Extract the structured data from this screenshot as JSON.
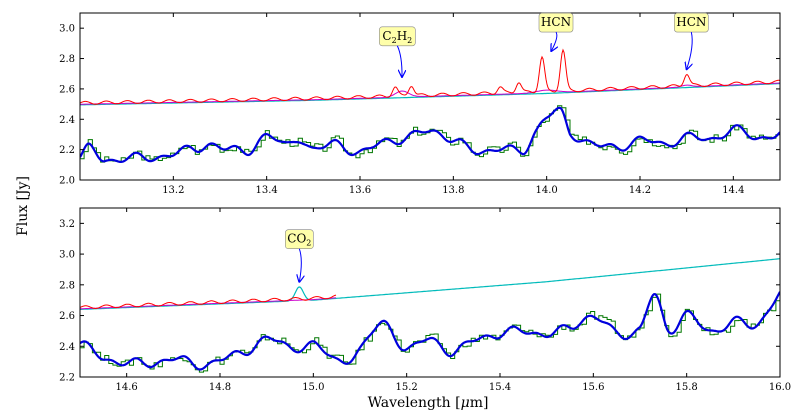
{
  "figure": {
    "ylabel": "Flux [Jy]",
    "xlabel_text": "Wavelength [",
    "xlabel_mu": "μ",
    "xlabel_unit": "m]"
  },
  "colors": {
    "observed": "#007700",
    "model": "#0000dd",
    "molecule": "#ff0000",
    "ch2": "#cc00cc",
    "continuum": "#00bbbb",
    "annotation_bg": "#ffffaa",
    "arrow": "#0000ff"
  },
  "chart_data": [
    {
      "type": "line",
      "xlim": [
        13.0,
        14.5
      ],
      "ylim": [
        2.0,
        3.1
      ],
      "xticks": [
        13.2,
        13.4,
        13.6,
        13.8,
        14.0,
        14.2,
        14.4
      ],
      "yticks": [
        2.0,
        2.2,
        2.4,
        2.6,
        2.8,
        3.0
      ],
      "xtick_labels": [
        "13.2",
        "13.4",
        "13.6",
        "13.8",
        "14.0",
        "14.2",
        "14.4"
      ],
      "ytick_labels": [
        "2.0",
        "2.2",
        "2.4",
        "2.6",
        "2.8",
        "3.0"
      ],
      "grid": false,
      "continuum": {
        "x": [
          13.0,
          13.5,
          14.0,
          14.5
        ],
        "y": [
          2.495,
          2.525,
          2.57,
          2.635
        ]
      },
      "model_points": {
        "x": [
          13.0,
          13.02,
          13.05,
          13.1,
          13.15,
          13.2,
          13.25,
          13.28,
          13.32,
          13.36,
          13.4,
          13.44,
          13.47,
          13.5,
          13.55,
          13.6,
          13.65,
          13.7,
          13.75,
          13.8,
          13.85,
          13.9,
          13.95,
          13.98,
          14.0,
          14.03,
          14.05,
          14.1,
          14.15,
          14.2,
          14.25,
          14.3,
          14.35,
          14.4,
          14.45,
          14.5
        ],
        "y": [
          2.15,
          2.21,
          2.13,
          2.15,
          2.14,
          2.18,
          2.2,
          2.24,
          2.2,
          2.19,
          2.3,
          2.22,
          2.28,
          2.2,
          2.24,
          2.18,
          2.25,
          2.28,
          2.32,
          2.27,
          2.18,
          2.22,
          2.18,
          2.34,
          2.43,
          2.44,
          2.3,
          2.25,
          2.2,
          2.28,
          2.22,
          2.3,
          2.25,
          2.35,
          2.26,
          2.33
        ]
      },
      "molecule_peaks": [
        {
          "x": 13.675,
          "height": 0.06
        },
        {
          "x": 13.71,
          "height": 0.07
        },
        {
          "x": 13.9,
          "height": 0.04
        },
        {
          "x": 13.94,
          "height": 0.07
        },
        {
          "x": 13.99,
          "height": 0.23
        },
        {
          "x": 14.035,
          "height": 0.27
        },
        {
          "x": 14.3,
          "height": 0.08
        }
      ],
      "annotations": [
        {
          "sym": "C",
          "sub1": "2",
          "sym2": "H",
          "sub2": "2",
          "label_x": 13.68,
          "label_y": 2.95,
          "arrow_x": 13.69,
          "arrow_y": 2.68
        },
        {
          "sym": "HCN",
          "label_x": 14.02,
          "label_y": 3.04,
          "arrow_x": 14.01,
          "arrow_y": 2.85
        },
        {
          "sym": "HCN",
          "label_x": 14.31,
          "label_y": 3.04,
          "arrow_x": 14.3,
          "arrow_y": 2.73
        }
      ]
    },
    {
      "type": "line",
      "xlim": [
        14.5,
        16.0
      ],
      "ylim": [
        2.2,
        3.3
      ],
      "xticks": [
        14.6,
        14.8,
        15.0,
        15.2,
        15.4,
        15.6,
        15.8,
        16.0
      ],
      "yticks": [
        2.2,
        2.4,
        2.6,
        2.8,
        3.0,
        3.2
      ],
      "xtick_labels": [
        "14.6",
        "14.8",
        "15.0",
        "15.2",
        "15.4",
        "15.6",
        "15.8",
        "16.0"
      ],
      "ytick_labels": [
        "2.2",
        "2.4",
        "2.6",
        "2.8",
        "3.0",
        "3.2"
      ],
      "grid": false,
      "continuum": {
        "x": [
          14.5,
          15.0,
          15.5,
          16.0
        ],
        "y": [
          2.64,
          2.7,
          2.82,
          2.97
        ]
      },
      "model_points": {
        "x": [
          14.5,
          14.55,
          14.6,
          14.65,
          14.7,
          14.75,
          14.8,
          14.85,
          14.9,
          14.95,
          15.0,
          15.05,
          15.1,
          15.15,
          15.2,
          15.25,
          15.3,
          15.35,
          15.4,
          15.45,
          15.5,
          15.55,
          15.6,
          15.65,
          15.7,
          15.73,
          15.76,
          15.8,
          15.85,
          15.9,
          15.95,
          16.0
        ],
        "y": [
          2.42,
          2.32,
          2.3,
          2.28,
          2.33,
          2.27,
          2.32,
          2.35,
          2.46,
          2.38,
          2.42,
          2.3,
          2.38,
          2.55,
          2.38,
          2.45,
          2.36,
          2.45,
          2.48,
          2.5,
          2.48,
          2.52,
          2.6,
          2.48,
          2.52,
          2.73,
          2.5,
          2.62,
          2.48,
          2.58,
          2.52,
          2.77
        ]
      },
      "continuum_bump": {
        "x": 14.97,
        "height": 0.09
      },
      "annotations": [
        {
          "sym": "CO",
          "sub1": "2",
          "label_x": 14.97,
          "label_y": 3.1,
          "arrow_x": 14.97,
          "arrow_y": 2.82
        }
      ]
    }
  ]
}
